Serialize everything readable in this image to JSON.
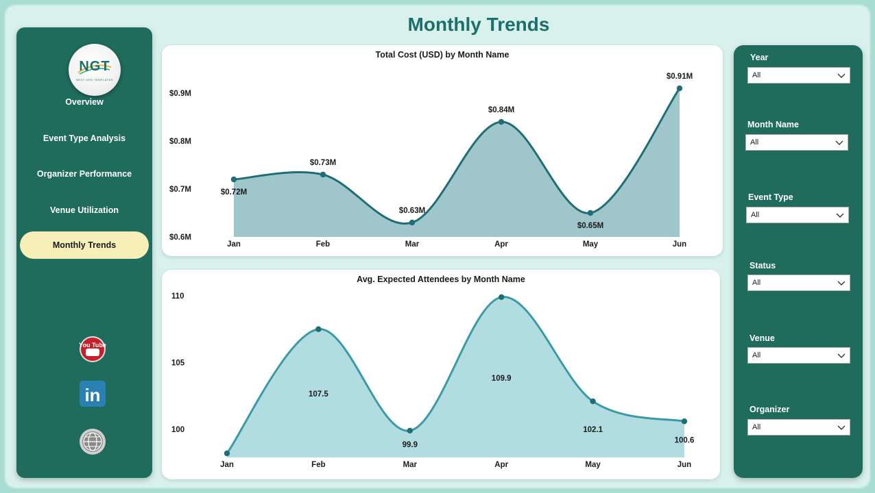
{
  "page_title": "Monthly Trends",
  "logo": {
    "text": "NGT",
    "subtext": "NEXT GEN TEMPLATES"
  },
  "nav": {
    "items": [
      {
        "label": "Overview",
        "active": false
      },
      {
        "label": "Event Type Analysis",
        "active": false
      },
      {
        "label": "Organizer Performance",
        "active": false
      },
      {
        "label": "Venue Utilization",
        "active": false
      },
      {
        "label": "Monthly Trends",
        "active": true
      }
    ]
  },
  "social": [
    {
      "icon": "youtube-icon",
      "label": "You Tube"
    },
    {
      "icon": "linkedin-icon",
      "label": "in"
    },
    {
      "icon": "globe-icon"
    }
  ],
  "filters": [
    {
      "label": "Year",
      "value": "All"
    },
    {
      "label": "Month Name",
      "value": "All"
    },
    {
      "label": "Event Type",
      "value": "All"
    },
    {
      "label": "Status",
      "value": "All"
    },
    {
      "label": "Venue",
      "value": "All"
    },
    {
      "label": "Organizer",
      "value": "All"
    }
  ],
  "colors": {
    "panel": "#1f6b5c",
    "title": "#1d6f6c",
    "active_nav": "#f7eeb8",
    "cost_line": "#1f6e77",
    "cost_fill": "#9fc7cb",
    "attendee_line": "#3c9aa6",
    "attendee_fill": "#b2dde0"
  },
  "chart_data": [
    {
      "type": "area",
      "title": "Total Cost (USD) by Month Name",
      "categories": [
        "Jan",
        "Feb",
        "Mar",
        "Apr",
        "May",
        "Jun"
      ],
      "values": [
        0.72,
        0.73,
        0.63,
        0.84,
        0.65,
        0.91
      ],
      "data_labels": [
        "$0.72M",
        "$0.73M",
        "$0.63M",
        "$0.84M",
        "$0.65M",
        "$0.91M"
      ],
      "ytick_labels": [
        "$0.9M",
        "$0.8M",
        "$0.7M",
        "$0.6M"
      ],
      "ytick_values": [
        0.9,
        0.8,
        0.7,
        0.6
      ],
      "ylim": [
        0.6,
        0.9
      ],
      "grid": false
    },
    {
      "type": "area",
      "title": "Avg. Expected Attendees by Month Name",
      "categories": [
        "Jan",
        "Feb",
        "Mar",
        "Apr",
        "May",
        "Jun"
      ],
      "values": [
        98.2,
        107.5,
        99.9,
        109.9,
        102.1,
        100.6
      ],
      "data_labels": [
        "",
        "107.5",
        "99.9",
        "109.9",
        "102.1",
        "100.6"
      ],
      "ytick_labels": [
        "110",
        "105",
        "100"
      ],
      "ytick_values": [
        110,
        105,
        100
      ],
      "grid": false
    }
  ]
}
